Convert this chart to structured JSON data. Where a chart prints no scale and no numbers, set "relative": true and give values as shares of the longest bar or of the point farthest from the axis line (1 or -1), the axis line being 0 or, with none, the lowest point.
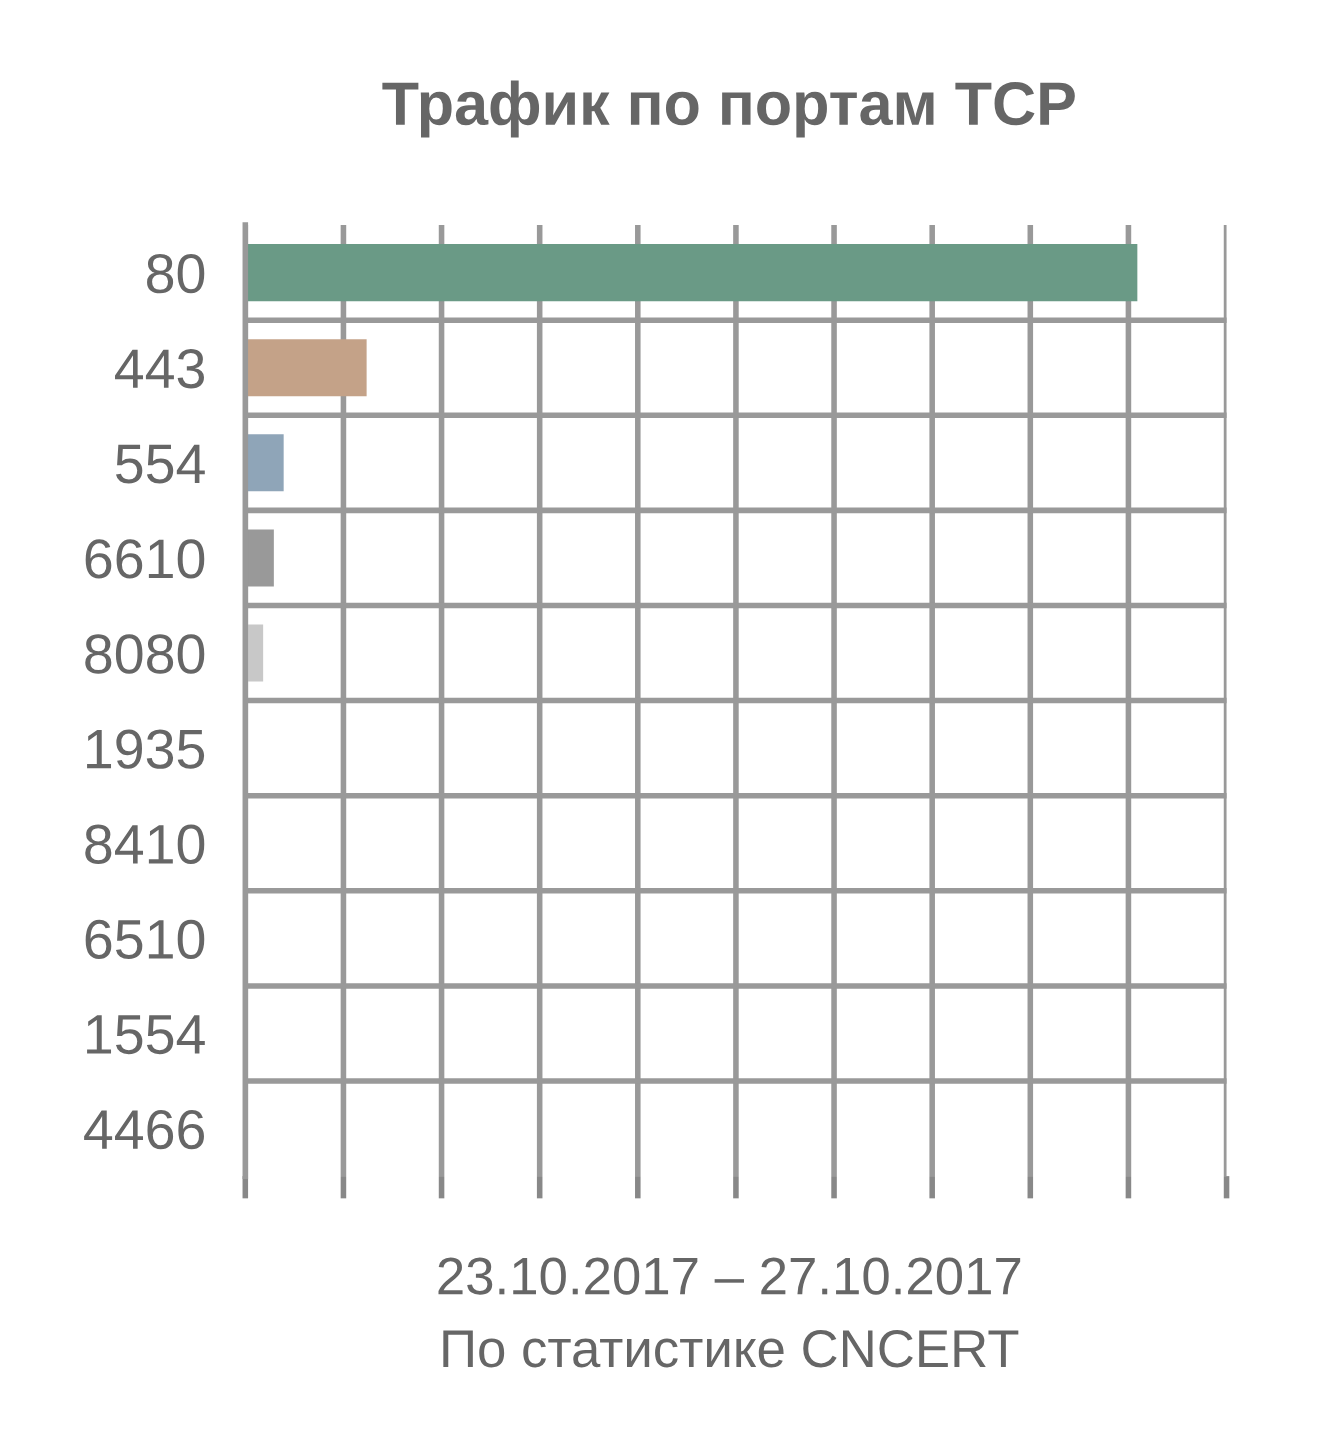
{
  "chart_data": {
    "type": "bar",
    "orientation": "horizontal",
    "relative": true,
    "title": "Трафик по портам TCP",
    "categories": [
      "80",
      "443",
      "554",
      "6610",
      "8080",
      "1935",
      "8410",
      "6510",
      "1554",
      "4466"
    ],
    "values": [
      1,
      0.136,
      0.043,
      0.032,
      0.02,
      0,
      0,
      0,
      0,
      0
    ],
    "colors": [
      "#6a9a86",
      "#c4a288",
      "#8fa5b8",
      "#999999",
      "#c8c8c8",
      "#c8c8c8",
      "#c8c8c8",
      "#c8c8c8",
      "#c8c8c8",
      "#c8c8c8"
    ],
    "grid": true,
    "tick_labels": "y",
    "annotations": [
      "23.10.2017 – 27.10.2017",
      "По статистике CNCERT"
    ]
  }
}
